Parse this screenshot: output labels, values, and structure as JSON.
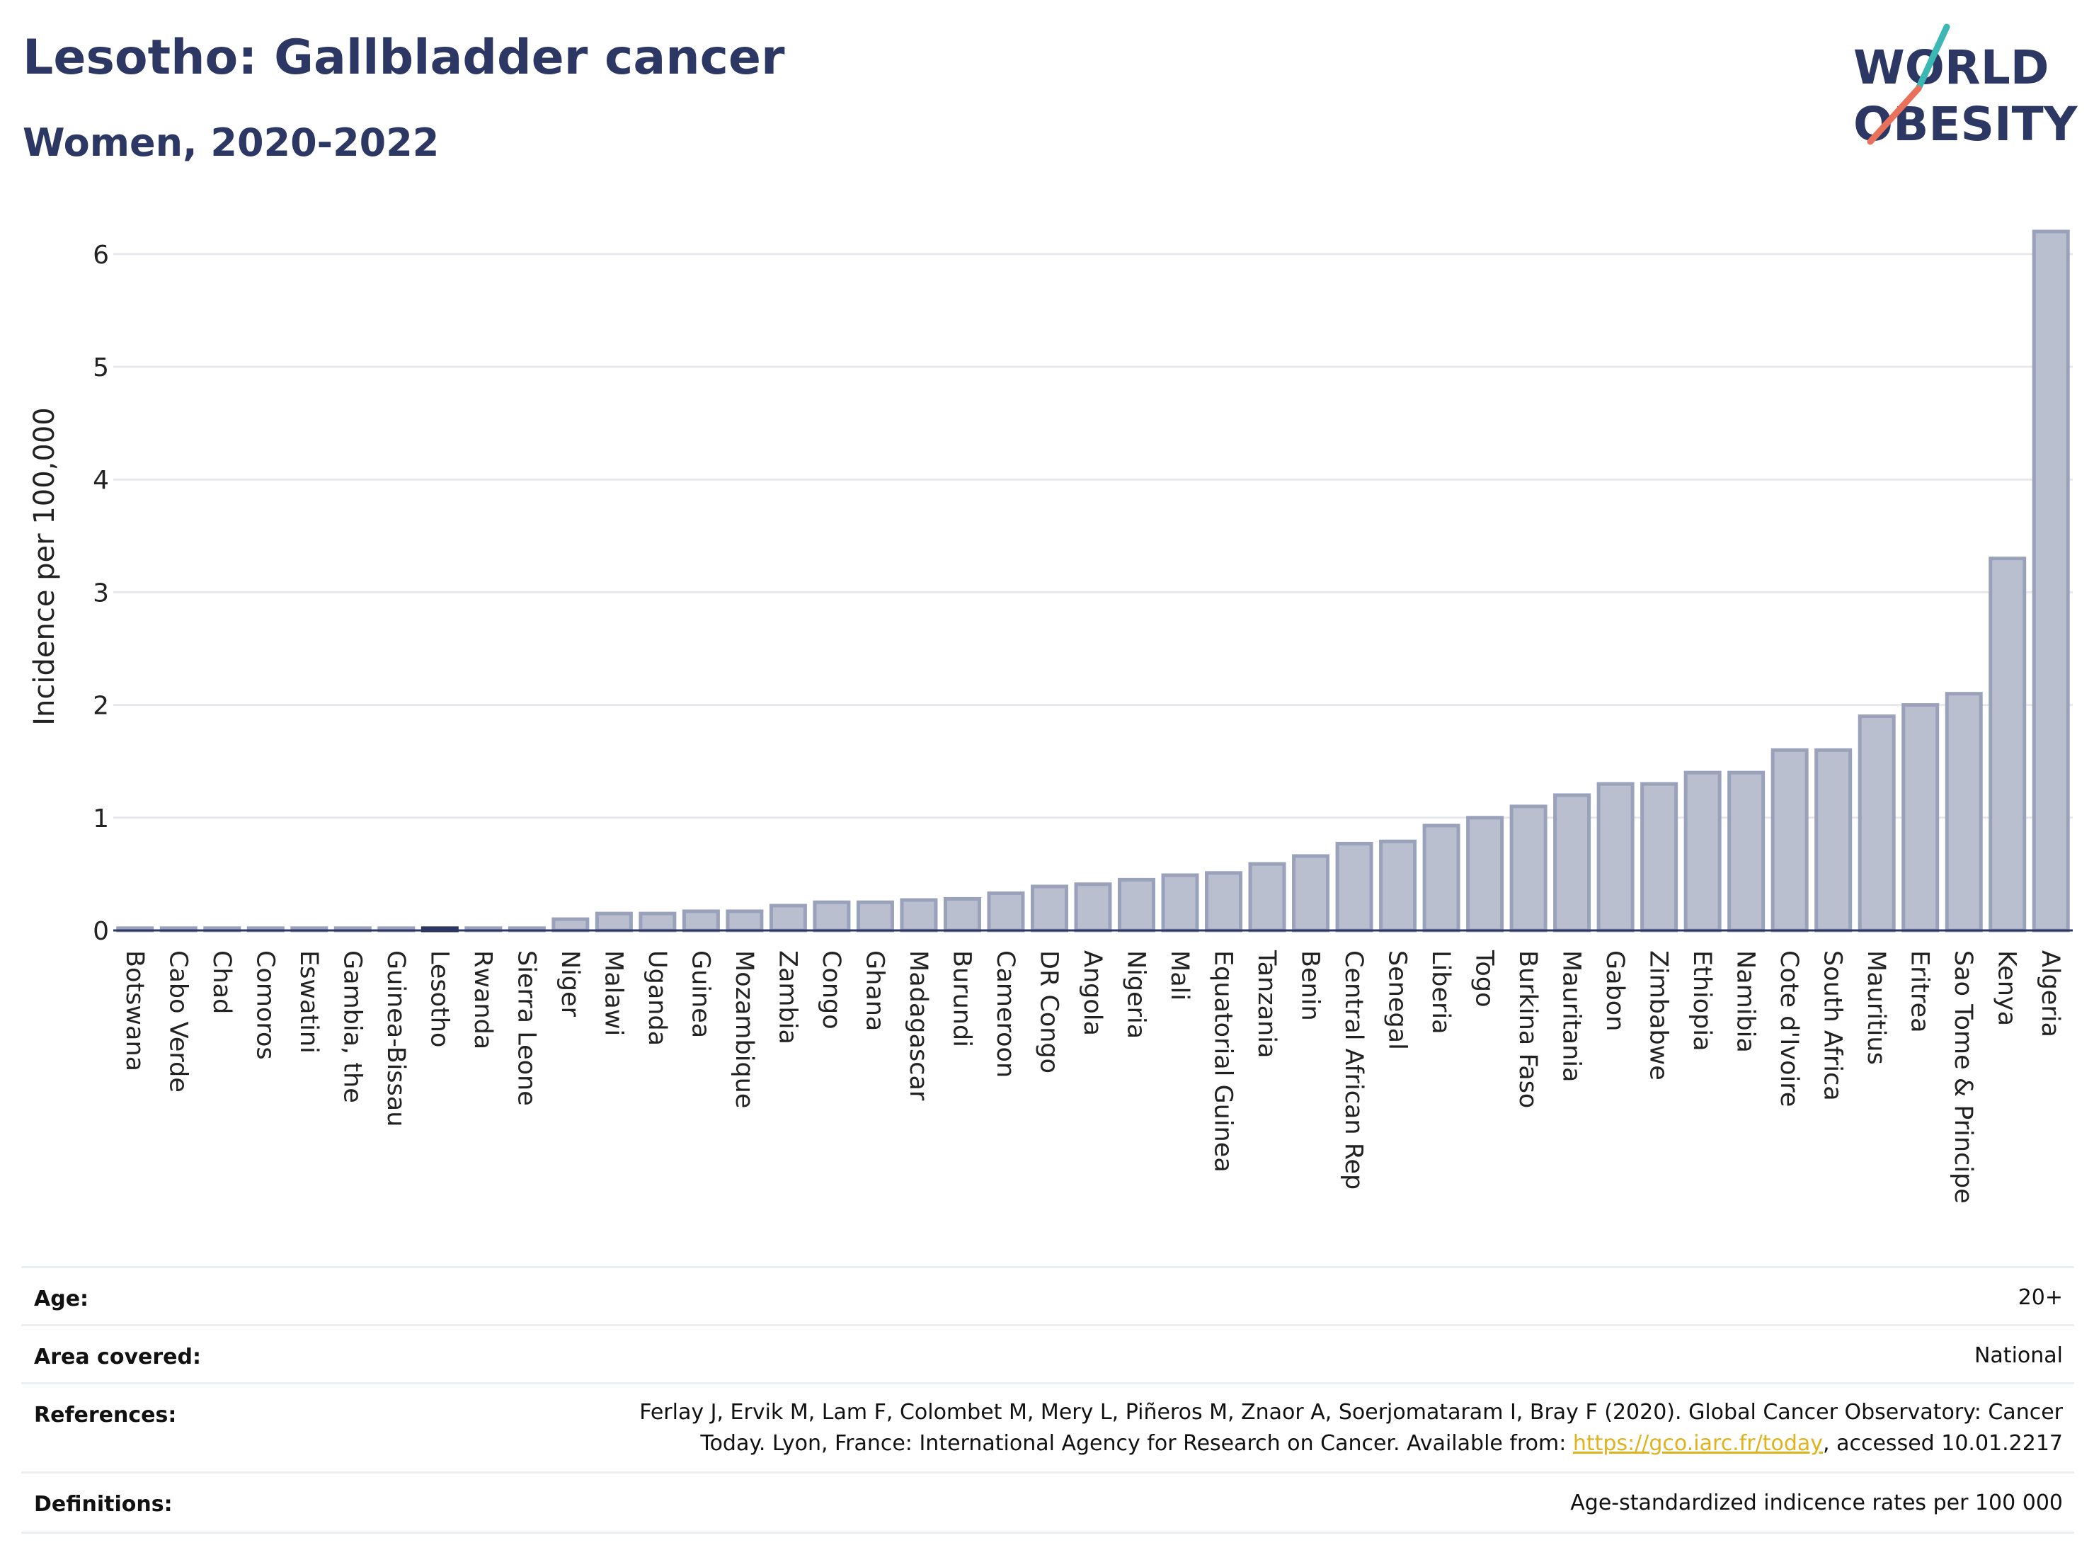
{
  "header": {
    "title": "Lesotho: Gallbladder cancer",
    "subtitle": "Women, 2020-2022"
  },
  "logo": {
    "line1": "WORLD",
    "line2": "OBESITY",
    "colors": {
      "text": "#2d3764",
      "teal": "#3bb8b4",
      "coral": "#e8715b"
    }
  },
  "chart_data": {
    "type": "bar",
    "ylabel": "Incidence per 100,000",
    "xlabel": "",
    "ylim": [
      0,
      6.5
    ],
    "yticks": [
      0,
      1,
      2,
      3,
      4,
      5,
      6
    ],
    "grid": true,
    "highlight": "Lesotho",
    "colors": {
      "bar": "#b9bfcf",
      "bar_border": "#9aa1bb",
      "highlight": "#2d3764"
    },
    "categories": [
      "Botswana",
      "Cabo Verde",
      "Chad",
      "Comoros",
      "Eswatini",
      "Gambia, the",
      "Guinea-Bissau",
      "Lesotho",
      "Rwanda",
      "Sierra Leone",
      "Niger",
      "Malawi",
      "Uganda",
      "Guinea",
      "Mozambique",
      "Zambia",
      "Congo",
      "Ghana",
      "Madagascar",
      "Burundi",
      "Cameroon",
      "DR Congo",
      "Angola",
      "Nigeria",
      "Mali",
      "Equatorial Guinea",
      "Tanzania",
      "Benin",
      "Central African Rep",
      "Senegal",
      "Liberia",
      "Togo",
      "Burkina Faso",
      "Mauritania",
      "Gabon",
      "Zimbabwe",
      "Ethiopia",
      "Namibia",
      "Cote d'Ivoire",
      "South Africa",
      "Mauritius",
      "Eritrea",
      "Sao Tome & Principe",
      "Kenya",
      "Algeria"
    ],
    "values": [
      0.02,
      0.02,
      0.02,
      0.02,
      0.02,
      0.02,
      0.02,
      0.02,
      0.02,
      0.02,
      0.1,
      0.15,
      0.15,
      0.17,
      0.17,
      0.22,
      0.25,
      0.25,
      0.27,
      0.28,
      0.33,
      0.39,
      0.41,
      0.45,
      0.49,
      0.51,
      0.59,
      0.66,
      0.77,
      0.79,
      0.93,
      1.0,
      1.1,
      1.2,
      1.3,
      1.3,
      1.4,
      1.4,
      1.6,
      1.6,
      1.9,
      2.0,
      2.1,
      3.3,
      6.2
    ]
  },
  "meta": {
    "age_label": "Age:",
    "age_value": "20+",
    "area_label": "Area covered:",
    "area_value": "National",
    "references_label": "References:",
    "references_line1": "Ferlay J, Ervik M, Lam F, Colombet M, Mery L, Piñeros M, Znaor A, Soerjomataram I, Bray F (2020). Global Cancer Observatory: Cancer",
    "references_line2_pre": "Today. Lyon, France: International Agency for Research on Cancer. Available from: ",
    "references_link": "https://gco.iarc.fr/today",
    "references_line2_post": ", accessed 10.01.2217",
    "definitions_label": "Definitions:",
    "definitions_value": "Age-standardized indicence rates per 100 000"
  }
}
